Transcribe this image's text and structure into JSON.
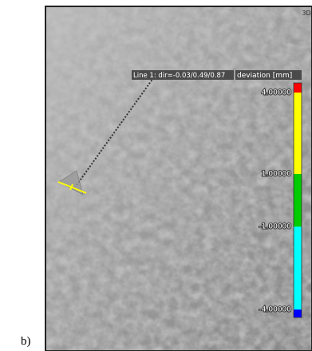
{
  "panel_label": "b)",
  "view": {
    "icon": "3D",
    "annotation": "Line 1: dir=-0.03/0.49/0.87"
  },
  "colorbar": {
    "title": "deviation [mm]",
    "labels": [
      "4.00000",
      "1.00000",
      "-1.00000",
      "-4.00000"
    ]
  }
}
